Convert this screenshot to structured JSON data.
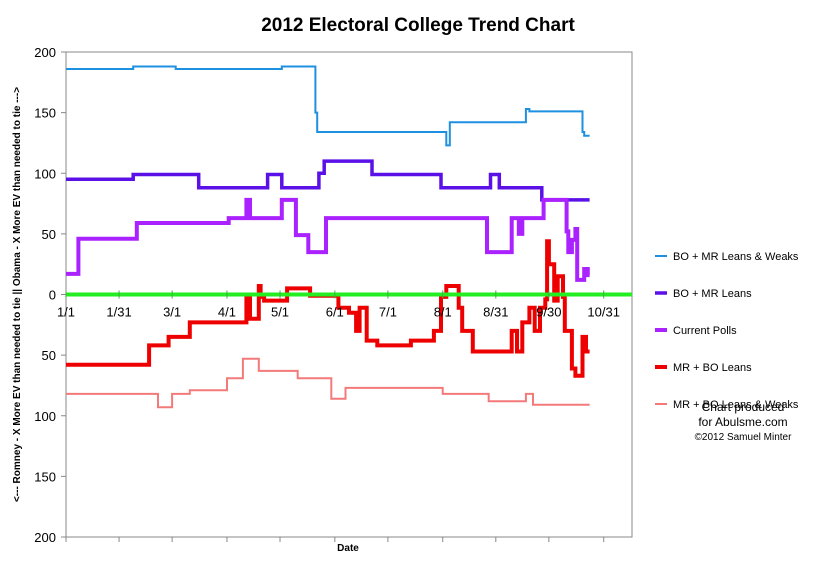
{
  "chart_data": {
    "type": "line",
    "title": "2012 Electoral College Trend Chart",
    "xlabel": "Date",
    "ylabel": "<--- Romney - X More EV than needed to tie || Obama - X More EV than needed to tie --->",
    "y_ticks": [
      {
        "value": 200,
        "label": "200"
      },
      {
        "value": 150,
        "label": "150"
      },
      {
        "value": 100,
        "label": "100"
      },
      {
        "value": 50,
        "label": "50"
      },
      {
        "value": 0,
        "label": "0"
      },
      {
        "value": -50,
        "label": "50"
      },
      {
        "value": -100,
        "label": "100"
      },
      {
        "value": -150,
        "label": "150"
      },
      {
        "value": -200,
        "label": "200"
      }
    ],
    "ylim": [
      -200,
      200
    ],
    "xlim": [
      0,
      320
    ],
    "x_ticks": [
      {
        "value": 0,
        "label": "1/1"
      },
      {
        "value": 30,
        "label": "1/31"
      },
      {
        "value": 60,
        "label": "3/1"
      },
      {
        "value": 91,
        "label": "4/1"
      },
      {
        "value": 121,
        "label": "5/1"
      },
      {
        "value": 152,
        "label": "6/1"
      },
      {
        "value": 182,
        "label": "7/1"
      },
      {
        "value": 213,
        "label": "8/1"
      },
      {
        "value": 243,
        "label": "8/31"
      },
      {
        "value": 273,
        "label": "9/30"
      },
      {
        "value": 304,
        "label": "10/31"
      }
    ],
    "zero_line_color": "#22ee22",
    "series": [
      {
        "name": "BO + MR Leans & Weaks",
        "color": "#1e90e0",
        "width": 2,
        "step": true,
        "points": [
          [
            0,
            186
          ],
          [
            38,
            186
          ],
          [
            38,
            188
          ],
          [
            62,
            188
          ],
          [
            62,
            186
          ],
          [
            122,
            186
          ],
          [
            122,
            188
          ],
          [
            141,
            188
          ],
          [
            141,
            150
          ],
          [
            142,
            150
          ],
          [
            142,
            134
          ],
          [
            215,
            134
          ],
          [
            215,
            123
          ],
          [
            217,
            123
          ],
          [
            217,
            142
          ],
          [
            260,
            142
          ],
          [
            260,
            153
          ],
          [
            262,
            153
          ],
          [
            262,
            151
          ],
          [
            292,
            151
          ],
          [
            292,
            134
          ],
          [
            293,
            134
          ],
          [
            293,
            131
          ],
          [
            296,
            131
          ]
        ]
      },
      {
        "name": "BO + MR Leans",
        "color": "#5a10e6",
        "width": 3.5,
        "step": true,
        "points": [
          [
            0,
            95
          ],
          [
            38,
            95
          ],
          [
            38,
            99
          ],
          [
            75,
            99
          ],
          [
            75,
            88
          ],
          [
            114,
            88
          ],
          [
            114,
            99
          ],
          [
            122,
            99
          ],
          [
            122,
            88
          ],
          [
            143,
            88
          ],
          [
            143,
            100
          ],
          [
            146,
            100
          ],
          [
            146,
            110
          ],
          [
            173,
            110
          ],
          [
            173,
            99
          ],
          [
            212,
            99
          ],
          [
            212,
            88
          ],
          [
            240,
            88
          ],
          [
            240,
            99
          ],
          [
            245,
            99
          ],
          [
            245,
            88
          ],
          [
            269,
            88
          ],
          [
            269,
            78
          ],
          [
            296,
            78
          ]
        ]
      },
      {
        "name": "Current Polls",
        "color": "#aa22ff",
        "width": 4,
        "step": true,
        "points": [
          [
            0,
            17
          ],
          [
            7,
            17
          ],
          [
            7,
            46
          ],
          [
            40,
            46
          ],
          [
            40,
            59
          ],
          [
            92,
            59
          ],
          [
            92,
            63
          ],
          [
            102,
            63
          ],
          [
            102,
            78
          ],
          [
            104,
            78
          ],
          [
            104,
            63
          ],
          [
            122,
            63
          ],
          [
            122,
            78
          ],
          [
            130,
            78
          ],
          [
            130,
            49
          ],
          [
            137,
            49
          ],
          [
            137,
            35
          ],
          [
            147,
            35
          ],
          [
            147,
            63
          ],
          [
            238,
            63
          ],
          [
            238,
            35
          ],
          [
            252,
            35
          ],
          [
            252,
            63
          ],
          [
            256,
            63
          ],
          [
            256,
            50
          ],
          [
            258,
            50
          ],
          [
            258,
            63
          ],
          [
            270,
            63
          ],
          [
            270,
            78
          ],
          [
            283,
            78
          ],
          [
            283,
            52
          ],
          [
            284,
            52
          ],
          [
            284,
            35
          ],
          [
            286,
            35
          ],
          [
            286,
            45
          ],
          [
            288,
            45
          ],
          [
            288,
            54
          ],
          [
            289,
            54
          ],
          [
            289,
            12
          ],
          [
            293,
            12
          ],
          [
            293,
            21
          ],
          [
            295,
            21
          ],
          [
            295,
            16
          ],
          [
            296,
            16
          ]
        ]
      },
      {
        "name": "MR + BO Leans",
        "color": "#ee0000",
        "width": 4,
        "step": true,
        "points": [
          [
            0,
            -58
          ],
          [
            47,
            -58
          ],
          [
            47,
            -42
          ],
          [
            58,
            -42
          ],
          [
            58,
            -35
          ],
          [
            70,
            -35
          ],
          [
            70,
            -23
          ],
          [
            102,
            -23
          ],
          [
            102,
            -2
          ],
          [
            104,
            -2
          ],
          [
            104,
            -20
          ],
          [
            109,
            -20
          ],
          [
            109,
            7
          ],
          [
            110,
            7
          ],
          [
            110,
            -2
          ],
          [
            112,
            -2
          ],
          [
            112,
            -5
          ],
          [
            125,
            -5
          ],
          [
            125,
            5
          ],
          [
            138,
            5
          ],
          [
            138,
            -1
          ],
          [
            154,
            -1
          ],
          [
            154,
            -11
          ],
          [
            160,
            -11
          ],
          [
            160,
            -15
          ],
          [
            164,
            -15
          ],
          [
            164,
            -30
          ],
          [
            166,
            -30
          ],
          [
            166,
            -11
          ],
          [
            170,
            -11
          ],
          [
            170,
            -38
          ],
          [
            176,
            -38
          ],
          [
            176,
            -42
          ],
          [
            195,
            -42
          ],
          [
            195,
            -38
          ],
          [
            208,
            -38
          ],
          [
            208,
            -30
          ],
          [
            212,
            -30
          ],
          [
            212,
            -2
          ],
          [
            215,
            -2
          ],
          [
            215,
            7
          ],
          [
            222,
            7
          ],
          [
            222,
            -11
          ],
          [
            224,
            -11
          ],
          [
            224,
            -30
          ],
          [
            230,
            -30
          ],
          [
            230,
            -47
          ],
          [
            252,
            -47
          ],
          [
            252,
            -30
          ],
          [
            255,
            -30
          ],
          [
            255,
            -47
          ],
          [
            258,
            -47
          ],
          [
            258,
            -23
          ],
          [
            262,
            -23
          ],
          [
            262,
            -11
          ],
          [
            265,
            -11
          ],
          [
            265,
            -30
          ],
          [
            268,
            -30
          ],
          [
            268,
            -11
          ],
          [
            271,
            -11
          ],
          [
            271,
            -4
          ],
          [
            272,
            -4
          ],
          [
            272,
            44
          ],
          [
            273,
            44
          ],
          [
            273,
            25
          ],
          [
            276,
            25
          ],
          [
            276,
            -5
          ],
          [
            278,
            -5
          ],
          [
            278,
            15
          ],
          [
            281,
            15
          ],
          [
            281,
            -2
          ],
          [
            282,
            -2
          ],
          [
            282,
            -30
          ],
          [
            285,
            -30
          ],
          [
            285,
            -30
          ],
          [
            286,
            -30
          ],
          [
            286,
            -61
          ],
          [
            288,
            -61
          ],
          [
            288,
            -67
          ],
          [
            292,
            -67
          ],
          [
            292,
            -35
          ],
          [
            294,
            -35
          ],
          [
            294,
            -47
          ],
          [
            296,
            -47
          ]
        ]
      },
      {
        "name": "MR + BO Leans & Weaks",
        "color": "#f47a7a",
        "width": 2,
        "step": true,
        "points": [
          [
            0,
            -82
          ],
          [
            52,
            -82
          ],
          [
            52,
            -93
          ],
          [
            60,
            -93
          ],
          [
            60,
            -82
          ],
          [
            70,
            -82
          ],
          [
            70,
            -79
          ],
          [
            91,
            -79
          ],
          [
            91,
            -69
          ],
          [
            100,
            -69
          ],
          [
            100,
            -53
          ],
          [
            109,
            -53
          ],
          [
            109,
            -63
          ],
          [
            131,
            -63
          ],
          [
            131,
            -69
          ],
          [
            150,
            -69
          ],
          [
            150,
            -86
          ],
          [
            158,
            -86
          ],
          [
            158,
            -77
          ],
          [
            213,
            -77
          ],
          [
            213,
            -82
          ],
          [
            239,
            -82
          ],
          [
            239,
            -88
          ],
          [
            260,
            -88
          ],
          [
            260,
            -82
          ],
          [
            264,
            -82
          ],
          [
            264,
            -91
          ],
          [
            296,
            -91
          ]
        ]
      }
    ],
    "legend_placement": "right"
  },
  "credit": {
    "line1": "Chart produced",
    "line2": "for Abulsme.com",
    "line3": "©2012 Samuel Minter"
  }
}
